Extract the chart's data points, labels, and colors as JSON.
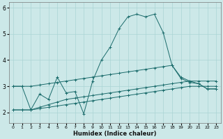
{
  "xlabel": "Humidex (Indice chaleur)",
  "bg_color": "#cce8e8",
  "grid_color": "#aad4d4",
  "line_color": "#1a6b6b",
  "xlim": [
    -0.5,
    23.5
  ],
  "ylim": [
    1.6,
    6.2
  ],
  "yticks": [
    2,
    3,
    4,
    5,
    6
  ],
  "xticks": [
    0,
    1,
    2,
    3,
    4,
    5,
    6,
    7,
    8,
    9,
    10,
    11,
    12,
    13,
    14,
    15,
    16,
    17,
    18,
    19,
    20,
    21,
    22,
    23
  ],
  "series": [
    {
      "x": [
        0,
        1,
        2,
        3,
        4,
        5,
        6,
        7,
        8,
        9,
        10,
        11,
        12,
        13,
        14,
        15,
        16,
        17,
        18,
        19,
        20,
        21,
        22,
        23
      ],
      "y": [
        3.0,
        3.0,
        2.1,
        2.7,
        2.5,
        3.35,
        2.75,
        2.8,
        1.95,
        3.2,
        4.0,
        4.5,
        5.2,
        5.65,
        5.75,
        5.65,
        5.75,
        5.05,
        3.8,
        3.35,
        3.2,
        3.1,
        2.9,
        2.9
      ]
    },
    {
      "x": [
        0,
        1,
        2,
        3,
        4,
        5,
        6,
        7,
        8,
        9,
        10,
        11,
        12,
        13,
        14,
        15,
        16,
        17,
        18,
        19,
        20,
        21,
        22,
        23
      ],
      "y": [
        3.0,
        3.0,
        3.0,
        3.05,
        3.1,
        3.15,
        3.2,
        3.25,
        3.3,
        3.35,
        3.4,
        3.45,
        3.5,
        3.55,
        3.6,
        3.65,
        3.7,
        3.75,
        3.8,
        3.3,
        3.15,
        3.1,
        2.9,
        2.9
      ]
    },
    {
      "x": [
        0,
        1,
        2,
        3,
        4,
        5,
        6,
        7,
        8,
        9,
        10,
        11,
        12,
        13,
        14,
        15,
        16,
        17,
        18,
        19,
        20,
        21,
        22,
        23
      ],
      "y": [
        2.1,
        2.1,
        2.1,
        2.2,
        2.3,
        2.4,
        2.5,
        2.55,
        2.6,
        2.65,
        2.7,
        2.75,
        2.8,
        2.85,
        2.9,
        2.95,
        3.0,
        3.05,
        3.1,
        3.15,
        3.2,
        3.2,
        3.2,
        3.2
      ]
    },
    {
      "x": [
        0,
        1,
        2,
        3,
        4,
        5,
        6,
        7,
        8,
        9,
        10,
        11,
        12,
        13,
        14,
        15,
        16,
        17,
        18,
        19,
        20,
        21,
        22,
        23
      ],
      "y": [
        2.1,
        2.1,
        2.1,
        2.15,
        2.2,
        2.25,
        2.3,
        2.35,
        2.4,
        2.45,
        2.5,
        2.55,
        2.6,
        2.65,
        2.7,
        2.75,
        2.8,
        2.85,
        2.9,
        2.95,
        3.0,
        3.0,
        3.0,
        3.0
      ]
    }
  ]
}
